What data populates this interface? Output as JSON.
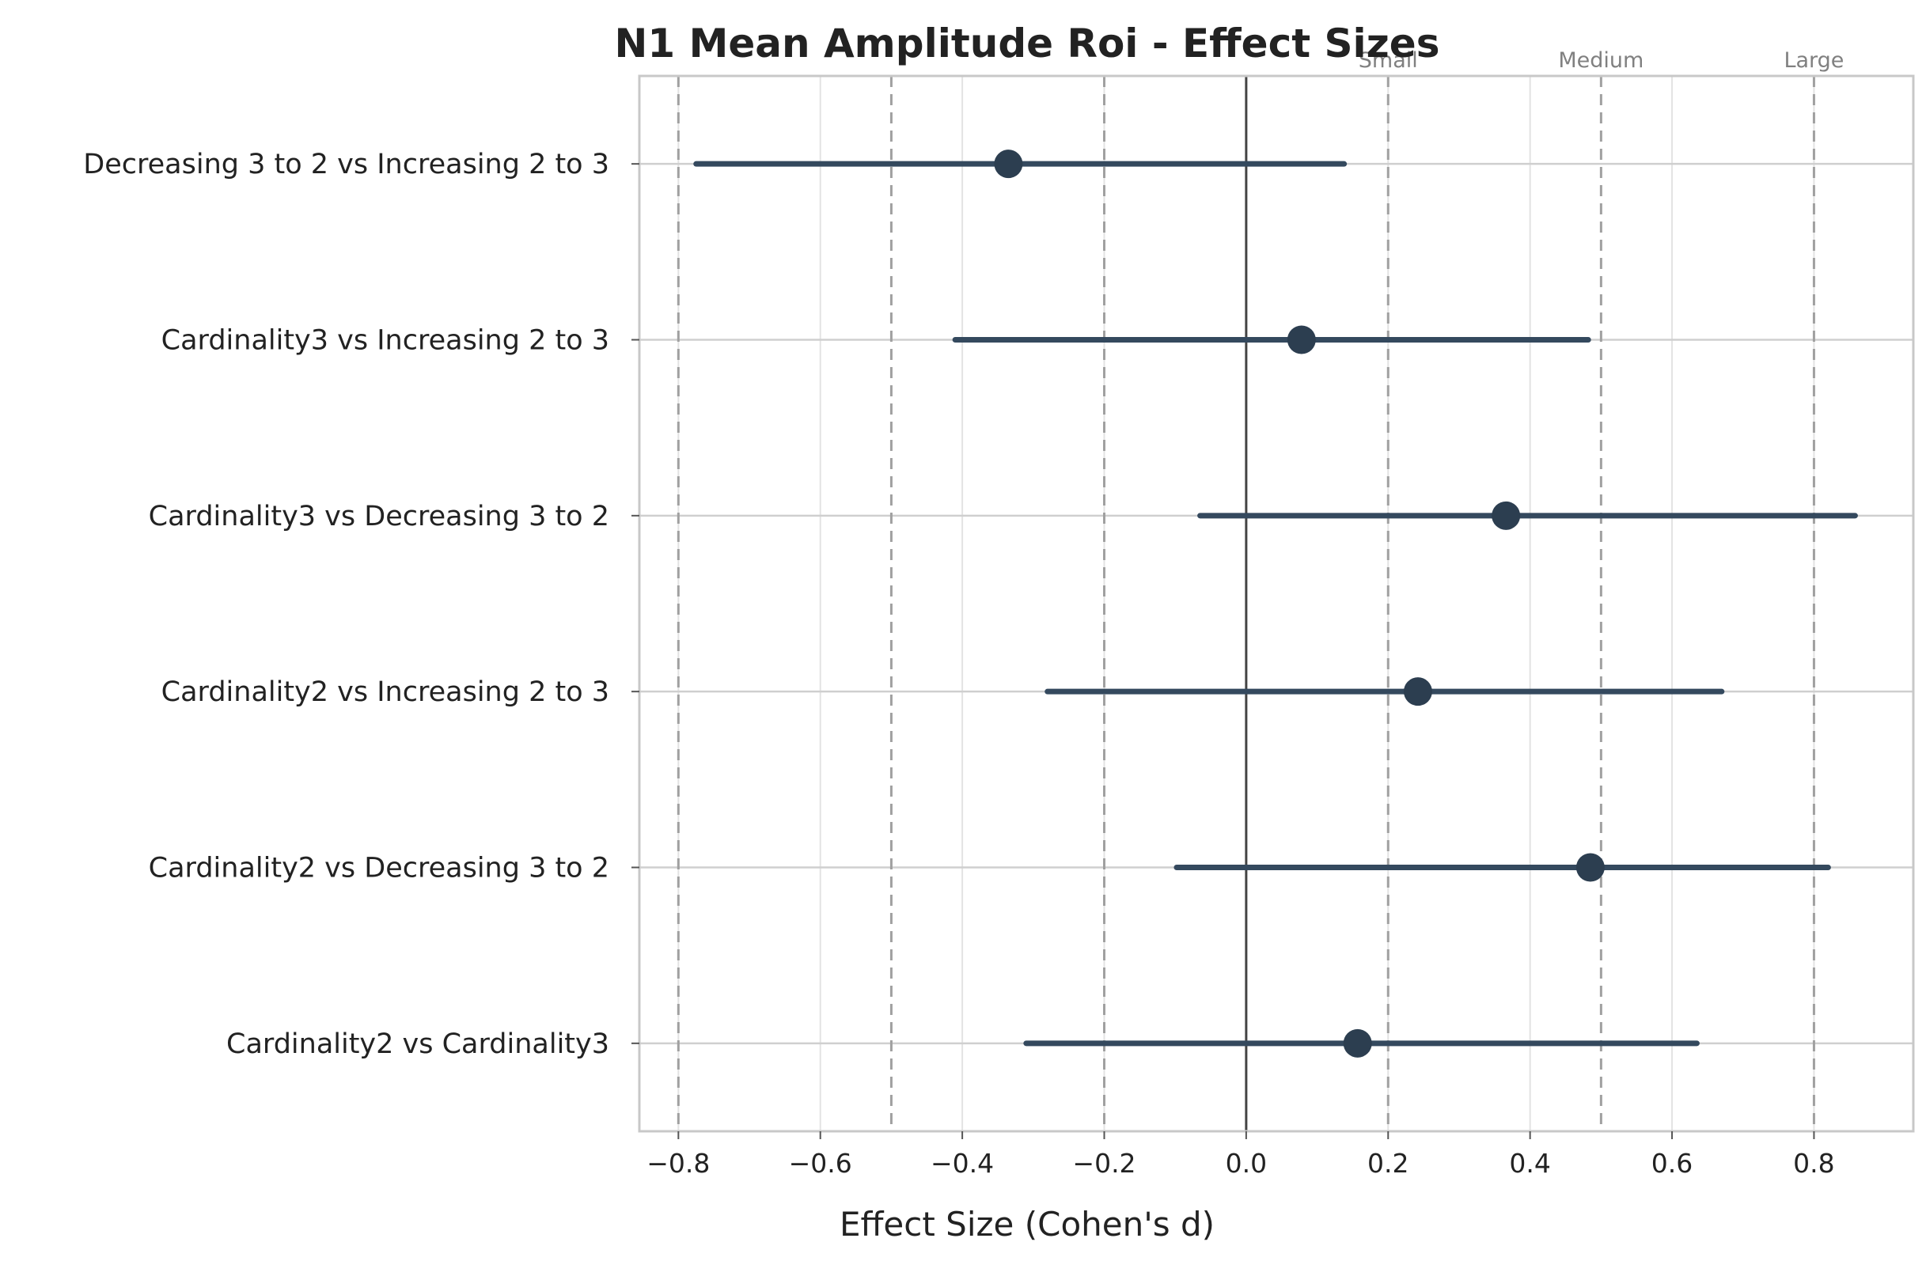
{
  "chart_data": {
    "type": "scatter",
    "title": "N1 Mean Amplitude Roi - Effect Sizes",
    "xlabel": "Effect Size (Cohen's d)",
    "ylabel": "",
    "xlim": [
      -0.855,
      0.94
    ],
    "xticks": [
      -0.8,
      -0.6,
      -0.4,
      -0.2,
      0.0,
      0.2,
      0.4,
      0.6,
      0.8
    ],
    "xtick_labels": [
      "−0.8",
      "−0.6",
      "−0.4",
      "−0.2",
      "0.0",
      "0.2",
      "0.4",
      "0.6",
      "0.8"
    ],
    "grid": true,
    "zero_line": 0,
    "thresholds": [
      {
        "value": -0.8,
        "label": ""
      },
      {
        "value": -0.5,
        "label": ""
      },
      {
        "value": -0.2,
        "label": ""
      },
      {
        "value": 0.2,
        "label": "Small"
      },
      {
        "value": 0.5,
        "label": "Medium"
      },
      {
        "value": 0.8,
        "label": "Large"
      }
    ],
    "comparisons": [
      {
        "label": "Decreasing 3 to 2 vs Increasing 2 to 3",
        "d": -0.335,
        "ci_low": -0.775,
        "ci_high": 0.138
      },
      {
        "label": "Cardinality3 vs Increasing 2 to 3",
        "d": 0.078,
        "ci_low": -0.41,
        "ci_high": 0.482
      },
      {
        "label": "Cardinality3 vs Decreasing 3 to 2",
        "d": 0.366,
        "ci_low": -0.065,
        "ci_high": 0.858
      },
      {
        "label": "Cardinality2 vs Increasing 2 to 3",
        "d": 0.242,
        "ci_low": -0.28,
        "ci_high": 0.67
      },
      {
        "label": "Cardinality2 vs Decreasing 3 to 2",
        "d": 0.485,
        "ci_low": -0.098,
        "ci_high": 0.82
      },
      {
        "label": "Cardinality2 vs Cardinality3",
        "d": 0.157,
        "ci_low": -0.31,
        "ci_high": 0.635
      }
    ],
    "colors": {
      "marker": "#2c3e50",
      "errorbar": "#34495e",
      "zero_line": "#444444",
      "threshold": "#a0a0a0",
      "grid": "#e3e3e3",
      "axes_edge": "#c8c8c8"
    }
  }
}
